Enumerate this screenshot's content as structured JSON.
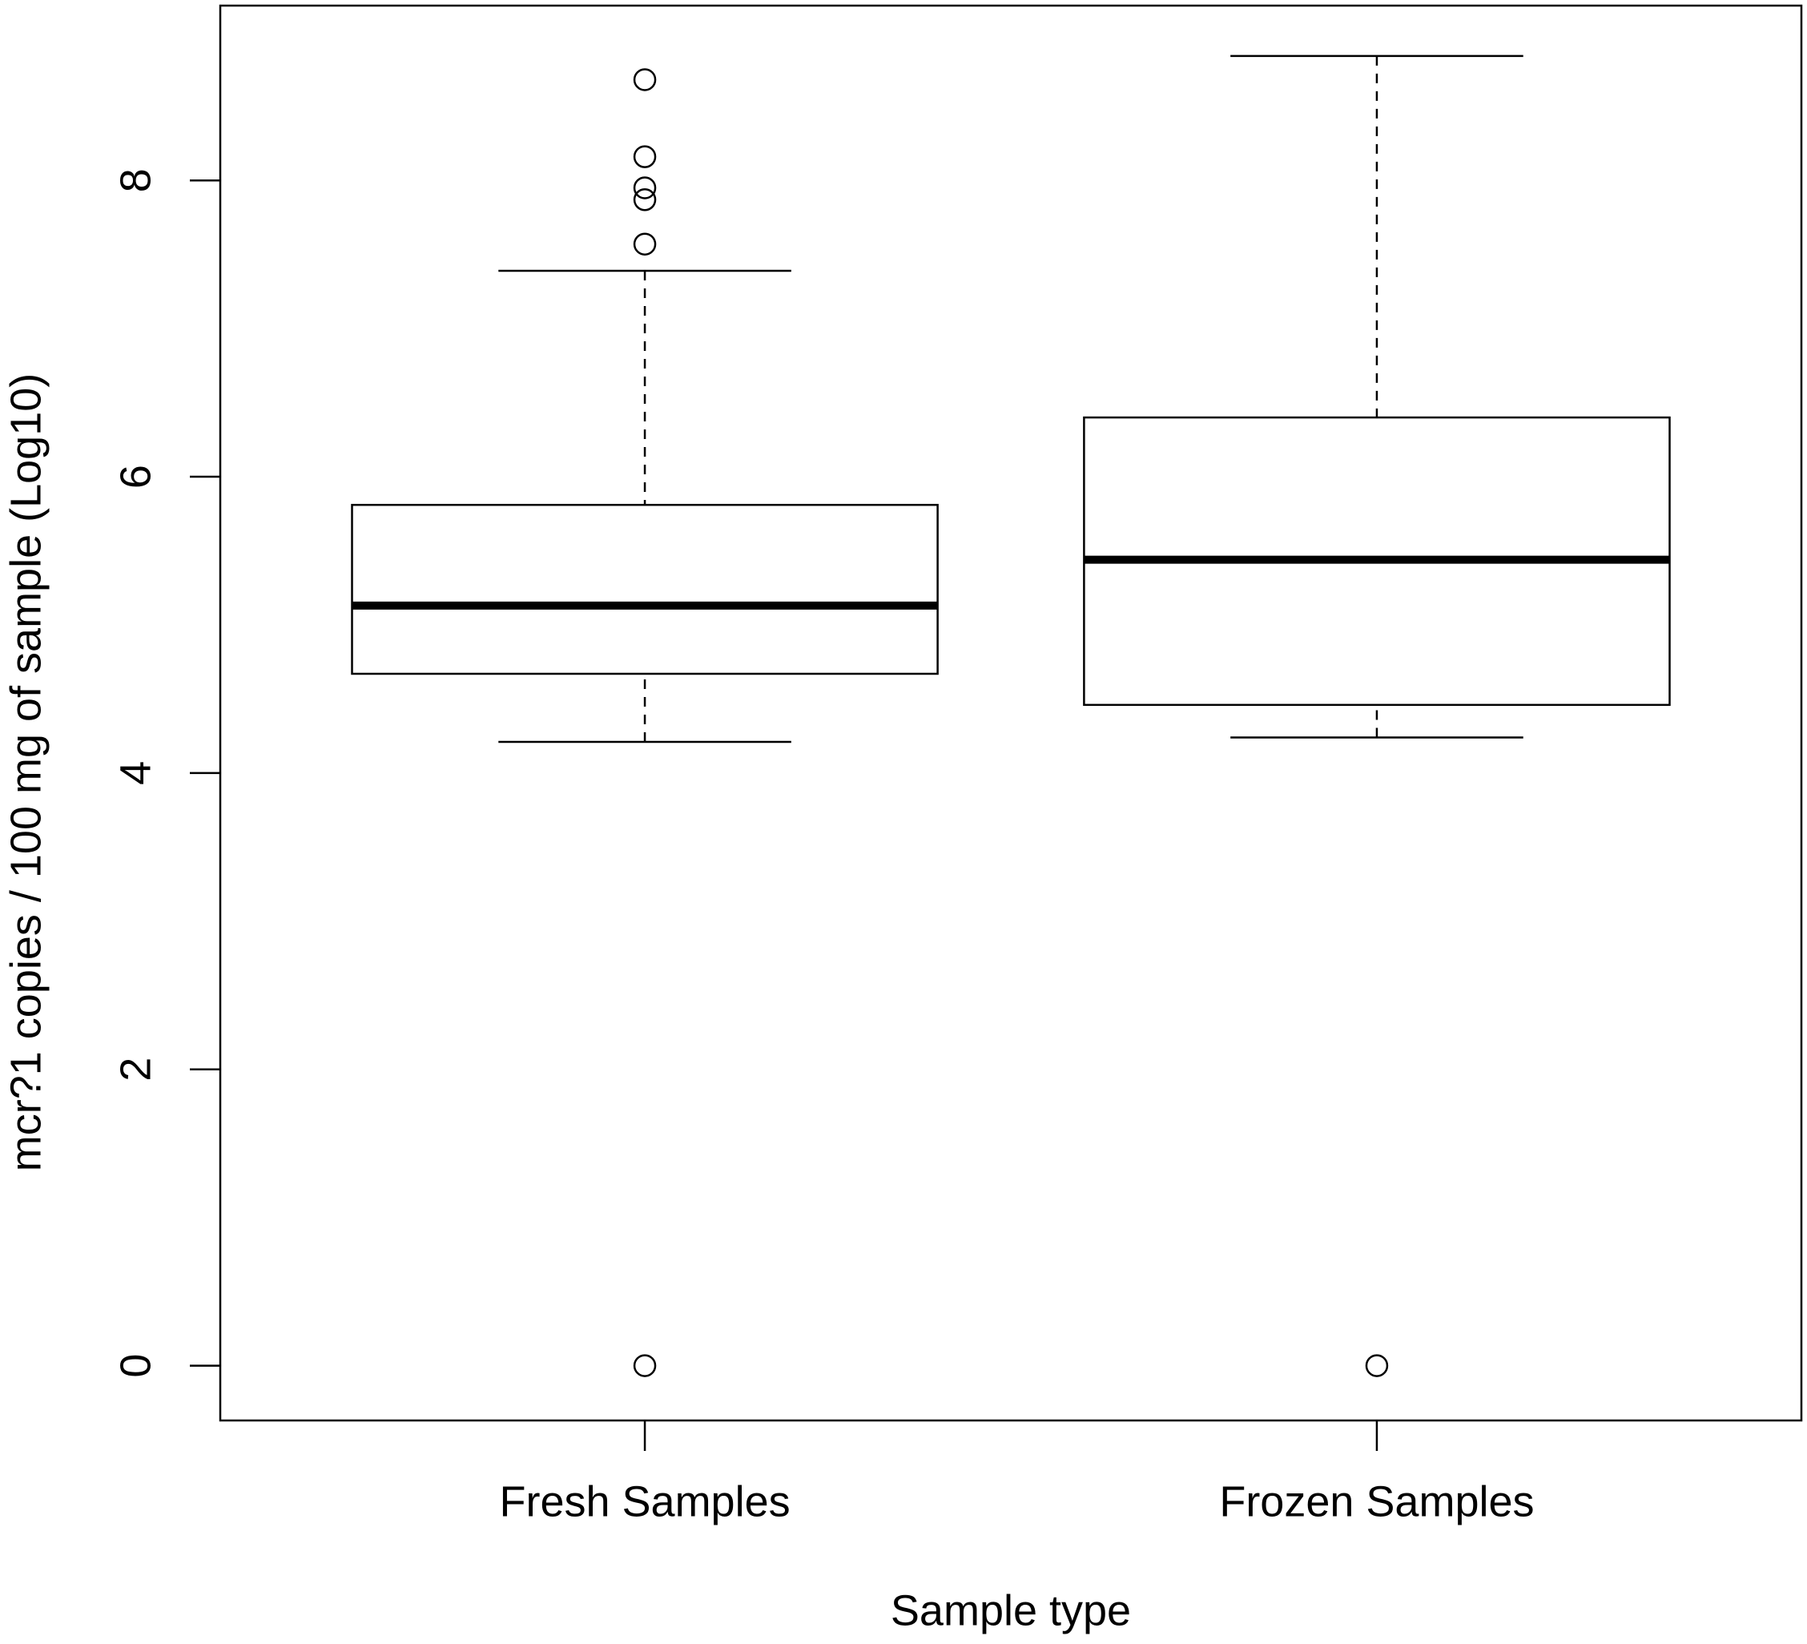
{
  "chart_data": {
    "type": "box",
    "x_label": "Sample type",
    "y_label": "mcr?1 copies / 100 mg of sample (Log10)",
    "categories": [
      "Fresh Samples",
      "Frozen Samples"
    ],
    "whisker_low": [
      4.21,
      4.24
    ],
    "q1": [
      4.67,
      4.46
    ],
    "median": [
      5.13,
      5.44
    ],
    "q3": [
      5.81,
      6.4
    ],
    "whisker_high": [
      7.39,
      8.84
    ],
    "outliers": [
      [
        8.68,
        8.16,
        7.95,
        7.87,
        7.57,
        0
      ],
      [
        0
      ]
    ],
    "color": "#000000",
    "ylim": [
      -0.37,
      9.18
    ],
    "yticks": [
      0,
      2,
      4,
      6,
      8
    ]
  }
}
